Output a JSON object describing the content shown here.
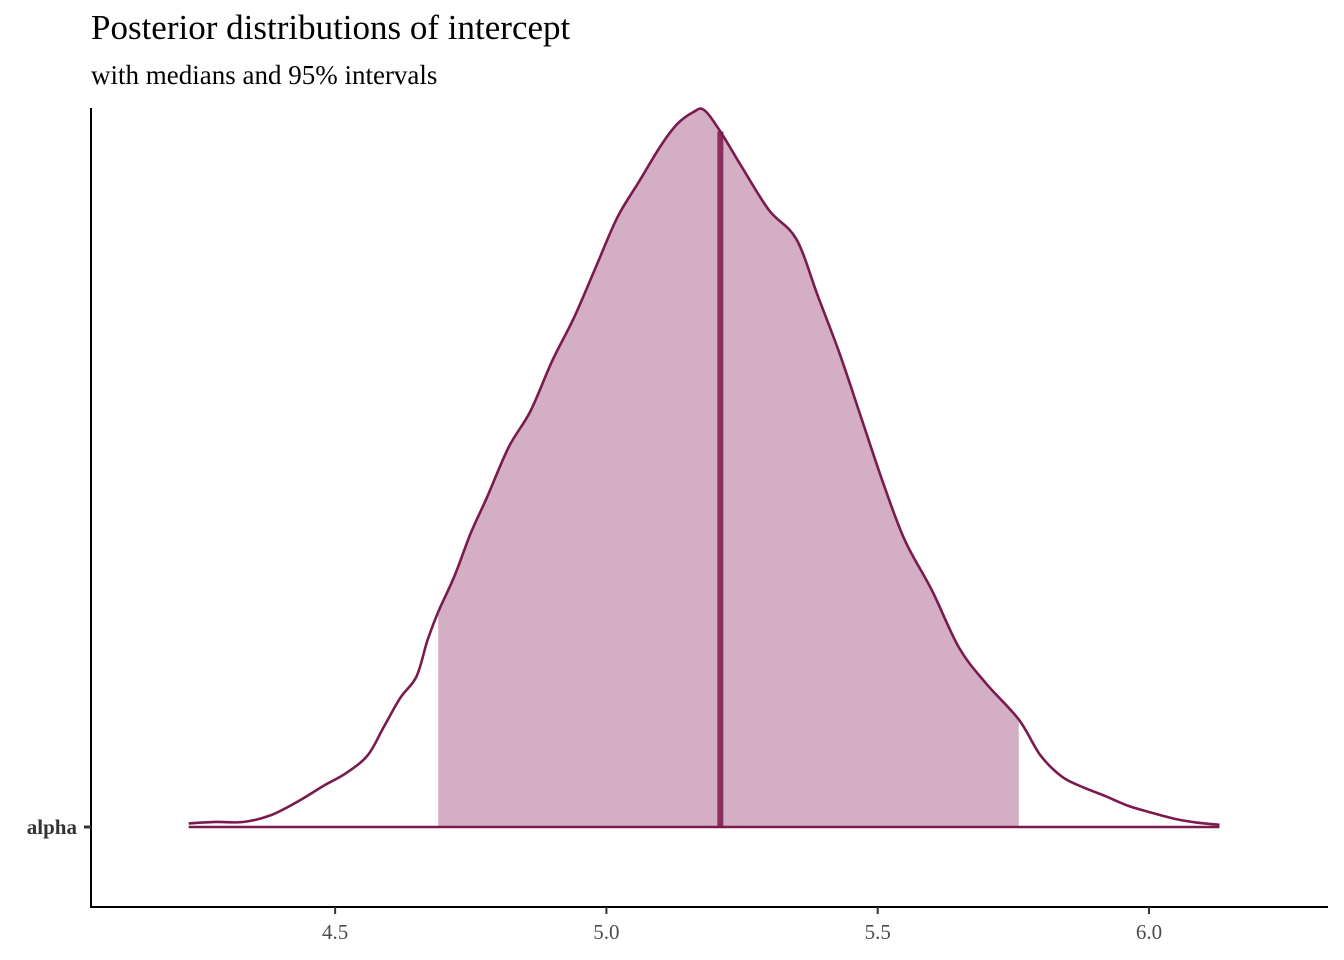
{
  "chart_data": {
    "type": "area",
    "title": "Posterior distributions of intercept",
    "subtitle": "with medians and 95% intervals",
    "parameters": [
      "alpha"
    ],
    "xlim": [
      4.05,
      6.33
    ],
    "x_ticks": [
      4.5,
      5.0,
      5.5,
      6.0
    ],
    "x_tick_labels": [
      "4.5",
      "5.0",
      "5.5",
      "6.0"
    ],
    "median": 5.21,
    "interval_95": [
      4.69,
      5.76
    ],
    "density": {
      "x": [
        4.23,
        4.28,
        4.33,
        4.38,
        4.43,
        4.48,
        4.52,
        4.56,
        4.59,
        4.62,
        4.65,
        4.67,
        4.69,
        4.72,
        4.75,
        4.78,
        4.82,
        4.86,
        4.9,
        4.94,
        4.98,
        5.02,
        5.06,
        5.1,
        5.13,
        5.16,
        5.18,
        5.21,
        5.25,
        5.3,
        5.35,
        5.39,
        5.43,
        5.47,
        5.51,
        5.55,
        5.6,
        5.65,
        5.7,
        5.76,
        5.8,
        5.84,
        5.88,
        5.92,
        5.96,
        6.0,
        6.05,
        6.09,
        6.13
      ],
      "y": [
        0.005,
        0.007,
        0.007,
        0.016,
        0.035,
        0.058,
        0.075,
        0.1,
        0.14,
        0.18,
        0.21,
        0.26,
        0.3,
        0.35,
        0.41,
        0.46,
        0.53,
        0.58,
        0.65,
        0.71,
        0.78,
        0.85,
        0.9,
        0.95,
        0.98,
        0.997,
        1.0,
        0.97,
        0.92,
        0.86,
        0.82,
        0.74,
        0.66,
        0.57,
        0.48,
        0.4,
        0.33,
        0.25,
        0.2,
        0.15,
        0.1,
        0.07,
        0.055,
        0.043,
        0.03,
        0.021,
        0.011,
        0.006,
        0.003
      ]
    },
    "colors": {
      "interval_fill": "#d4aec4",
      "outline": "#7a1a4e",
      "median_line": "#8b2e5e",
      "axis": "#000000",
      "tick_text": "#4d4d4d"
    }
  }
}
